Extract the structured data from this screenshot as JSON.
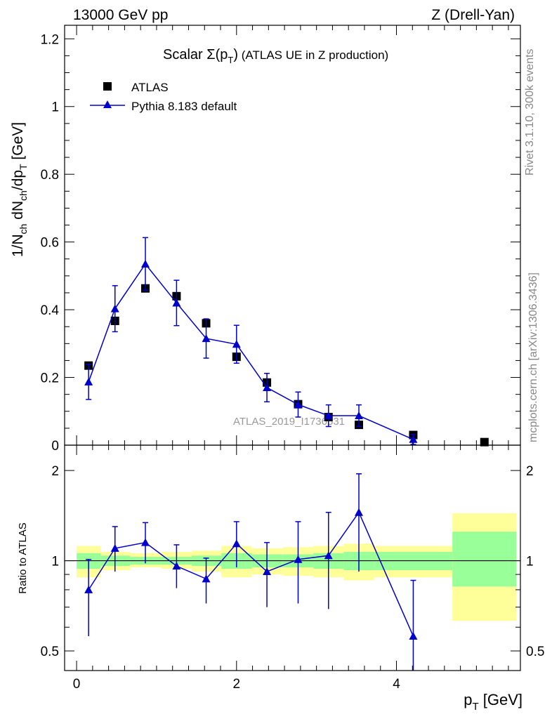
{
  "header": {
    "left": "13000 GeV pp",
    "right": "Z (Drell-Yan)"
  },
  "side_labels": {
    "rivet": "Rivet 3.1.10,  300k events",
    "mcplots": "mcplots.cern.ch [arXiv:1306.3436]"
  },
  "watermark": "ATLAS_2019_I1736531",
  "colors": {
    "mc": "#0000cc",
    "data": "#000000",
    "band_inner": "#99ff99",
    "band_outer": "#ffff99"
  },
  "chart_data": [
    {
      "type": "scatter",
      "title_prefix": "Scalar ",
      "title_sigma": "Σ(p",
      "title_sub": "T",
      "title_close": ")",
      "title_suffix": " (ATLAS UE in Z production)",
      "ylabel": "1/N_ch dN_ch/dp_T [GeV]",
      "ylim": [
        0,
        1.24
      ],
      "yticks": [
        "0",
        "0.2",
        "0.4",
        "0.6",
        "0.8",
        "1",
        "1.2"
      ],
      "ytick_values": [
        0,
        0.2,
        0.4,
        0.6,
        0.8,
        1.0,
        1.2
      ],
      "legend": [
        "ATLAS",
        "Pythia 8.183 default"
      ],
      "series": [
        {
          "name": "ATLAS",
          "marker": "square",
          "x": [
            0.15,
            0.48,
            0.86,
            1.25,
            1.62,
            2.0,
            2.38,
            2.77,
            3.15,
            3.53,
            4.21,
            5.1
          ],
          "y": [
            0.235,
            0.367,
            0.463,
            0.44,
            0.36,
            0.261,
            0.185,
            0.121,
            0.083,
            0.06,
            0.03,
            0.009
          ]
        },
        {
          "name": "Pythia 8.183 default",
          "marker": "triangle",
          "x": [
            0.15,
            0.48,
            0.86,
            1.25,
            1.62,
            2.0,
            2.38,
            2.77,
            3.15,
            3.53,
            4.21
          ],
          "y": [
            0.187,
            0.403,
            0.535,
            0.42,
            0.315,
            0.298,
            0.17,
            0.12,
            0.087,
            0.087,
            0.017
          ],
          "err": [
            0.052,
            0.068,
            0.078,
            0.067,
            0.058,
            0.056,
            0.042,
            0.037,
            0.032,
            0.032,
            0.015
          ]
        }
      ]
    },
    {
      "type": "scatter",
      "ylabel": "Ratio to ATLAS",
      "xlabel_main": "p",
      "xlabel_sub": "T",
      "xlabel_unit": " [GeV]",
      "xlim": [
        -0.15,
        5.55
      ],
      "xticks": [
        "0",
        "2",
        "4"
      ],
      "xtick_values": [
        0,
        2,
        4
      ],
      "ylim": [
        0.43,
        2.43
      ],
      "yticks": [
        "0.5",
        "1",
        "2"
      ],
      "ytick_values": [
        0.5,
        1,
        2
      ],
      "series": [
        {
          "name": "Pythia 8.183 default / ATLAS",
          "x": [
            0.15,
            0.48,
            0.86,
            1.25,
            1.62,
            2.0,
            2.38,
            2.77,
            3.15,
            3.53,
            4.21
          ],
          "y": [
            0.8,
            1.1,
            1.15,
            0.96,
            0.87,
            1.14,
            0.92,
            1.01,
            1.04,
            1.45,
            0.56
          ],
          "lo": [
            0.56,
            0.92,
            0.98,
            0.81,
            0.72,
            0.95,
            0.7,
            0.72,
            0.69,
            0.92,
            0.4
          ],
          "hi": [
            1.01,
            1.3,
            1.34,
            1.13,
            1.02,
            1.35,
            1.15,
            1.35,
            1.45,
            1.95,
            0.86
          ]
        }
      ],
      "uncertainty_bands": {
        "edges": [
          0.0,
          0.3,
          0.67,
          1.06,
          1.44,
          1.81,
          2.19,
          2.58,
          2.96,
          3.34,
          3.72,
          4.7,
          5.5
        ],
        "inner_lo": [
          0.94,
          0.96,
          0.97,
          0.97,
          0.96,
          0.94,
          0.95,
          0.95,
          0.94,
          0.93,
          0.93,
          0.82
        ],
        "inner_hi": [
          1.06,
          1.04,
          1.03,
          1.03,
          1.04,
          1.06,
          1.05,
          1.05,
          1.06,
          1.07,
          1.07,
          1.25
        ],
        "outer_lo": [
          0.88,
          0.93,
          0.95,
          0.94,
          0.92,
          0.88,
          0.9,
          0.89,
          0.88,
          0.86,
          0.88,
          0.63
        ],
        "outer_hi": [
          1.12,
          1.07,
          1.06,
          1.07,
          1.08,
          1.12,
          1.1,
          1.11,
          1.12,
          1.14,
          1.12,
          1.44
        ]
      }
    }
  ]
}
